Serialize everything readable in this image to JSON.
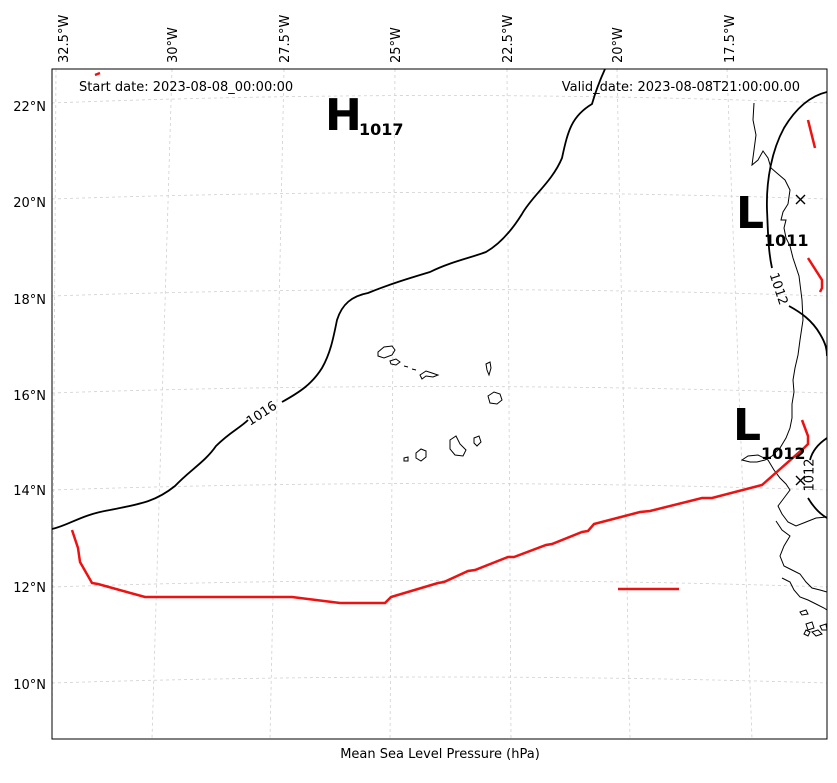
{
  "map": {
    "lon_ticks": [
      "32.5°W",
      "30°W",
      "27.5°W",
      "25°W",
      "22.5°W",
      "20°W",
      "17.5°W"
    ],
    "lat_ticks": [
      "22°N",
      "20°N",
      "18°N",
      "16°N",
      "14°N",
      "12°N",
      "10°N"
    ],
    "start_date": "Start date: 2023-08-08_00:00:00",
    "valid_date": "Valid_date: 2023-08-08T21:00:00.00",
    "caption": "Mean Sea Level Pressure (hPa)",
    "pressure_centers": [
      {
        "symbol": "H",
        "value": "1017"
      },
      {
        "symbol": "L",
        "value": "1011"
      },
      {
        "symbol": "L",
        "value": "1012"
      }
    ],
    "contour_labels": [
      "1016",
      "1012",
      "1012"
    ],
    "colors": {
      "isobar": "#000000",
      "front": "#ee1111",
      "grid": "#cccccc"
    }
  }
}
